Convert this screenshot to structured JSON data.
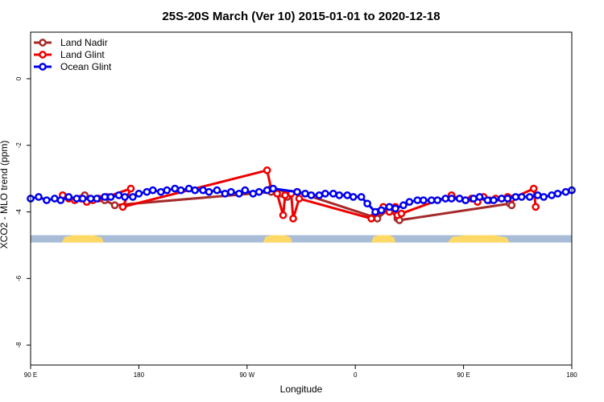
{
  "chart_data": {
    "type": "line",
    "title": "25S-20S March (Ver 10)   2015-01-01 to 2020-12-18",
    "xlabel": "Longitude",
    "ylabel": "XCO2 - MLO trend (ppm)",
    "xlim": [
      -90,
      180
    ],
    "ylim": [
      -8.6,
      1.4
    ],
    "x_ticks": [
      {
        "value": -90,
        "label": "90 E"
      },
      {
        "value": -36,
        "label": "180"
      },
      {
        "value": 18,
        "label": "90 W"
      },
      {
        "value": 72,
        "label": "0"
      },
      {
        "value": 126,
        "label": "90 E"
      },
      {
        "value": 180,
        "label": "180"
      }
    ],
    "y_ticks": [
      {
        "value": 0,
        "label": "0"
      },
      {
        "value": -2,
        "label": "-2"
      },
      {
        "value": -4,
        "label": "-4"
      },
      {
        "value": -6,
        "label": "-6"
      },
      {
        "value": -8,
        "label": "-8"
      }
    ],
    "grid": false,
    "legend_position": "top-left",
    "land_band": {
      "y_range": [
        -4.92,
        -4.7
      ],
      "ocean_color": "#a8bcd8",
      "land_color": "#ffd966",
      "land_segments": [
        [
          -74.5,
          -53.5
        ],
        [
          26,
          40.5
        ],
        [
          80,
          92
        ],
        [
          118,
          149
        ]
      ]
    },
    "series": [
      {
        "name": "Land Nadir",
        "color": "#a52a2a",
        "x": [
          -63,
          -53,
          -48,
          30,
          35,
          37,
          38,
          43,
          81,
          83,
          89,
          93,
          94,
          149,
          150
        ],
        "y": [
          -3.5,
          -3.65,
          -3.8,
          -3.4,
          -3.45,
          -3.5,
          -3.55,
          -3.4,
          -4.15,
          -4.2,
          -3.9,
          -4.2,
          -4.25,
          -3.75,
          -3.8
        ]
      },
      {
        "name": "Land Glint",
        "color": "#ee0000",
        "x": [
          -74,
          -71,
          -68,
          -65,
          -62,
          -59,
          -56,
          -52,
          -40,
          -44,
          28,
          30,
          33,
          36,
          37,
          40,
          41,
          44,
          80,
          83,
          86,
          89,
          92,
          93,
          95,
          120,
          124,
          127,
          130,
          133,
          136,
          139,
          142,
          145,
          148,
          150,
          161,
          162
        ],
        "y": [
          -3.5,
          -3.6,
          -3.65,
          -3.6,
          -3.7,
          -3.65,
          -3.6,
          -3.55,
          -3.3,
          -3.85,
          -2.75,
          -3.3,
          -3.45,
          -4.1,
          -3.5,
          -3.45,
          -4.2,
          -3.6,
          -4.2,
          -4.0,
          -3.85,
          -4.0,
          -3.85,
          -4.1,
          -4.05,
          -3.5,
          -3.6,
          -3.65,
          -3.6,
          -3.7,
          -3.55,
          -3.65,
          -3.6,
          -3.6,
          -3.55,
          -3.6,
          -3.3,
          -3.85
        ]
      },
      {
        "name": "Ocean Glint",
        "color": "#0000ee",
        "x": [
          -90,
          -86,
          -82,
          -78,
          -75,
          -71,
          -67,
          -64,
          -60,
          -57,
          -53,
          -50,
          -46,
          -43,
          -39,
          -36,
          -32,
          -29,
          -25,
          -22,
          -18,
          -15,
          -11,
          -8,
          -4,
          -1,
          3,
          7,
          10,
          14,
          17,
          21,
          24,
          28,
          31,
          43,
          47,
          50,
          54,
          57,
          61,
          64,
          68,
          71,
          75,
          78,
          82,
          85,
          89,
          92,
          96,
          99,
          103,
          106,
          110,
          113,
          117,
          120,
          124,
          127,
          131,
          134,
          138,
          141,
          145,
          148,
          152,
          155,
          159,
          163,
          166,
          170,
          173,
          177,
          180
        ],
        "y": [
          -3.6,
          -3.55,
          -3.65,
          -3.6,
          -3.65,
          -3.55,
          -3.6,
          -3.6,
          -3.6,
          -3.6,
          -3.55,
          -3.55,
          -3.5,
          -3.55,
          -3.55,
          -3.45,
          -3.4,
          -3.35,
          -3.4,
          -3.35,
          -3.3,
          -3.35,
          -3.3,
          -3.35,
          -3.35,
          -3.4,
          -3.35,
          -3.45,
          -3.4,
          -3.45,
          -3.35,
          -3.45,
          -3.4,
          -3.35,
          -3.3,
          -3.4,
          -3.45,
          -3.5,
          -3.5,
          -3.45,
          -3.45,
          -3.5,
          -3.5,
          -3.55,
          -3.55,
          -3.75,
          -4.0,
          -3.95,
          -3.85,
          -3.9,
          -3.8,
          -3.7,
          -3.65,
          -3.65,
          -3.65,
          -3.65,
          -3.6,
          -3.6,
          -3.6,
          -3.65,
          -3.6,
          -3.55,
          -3.65,
          -3.65,
          -3.6,
          -3.6,
          -3.55,
          -3.55,
          -3.55,
          -3.5,
          -3.55,
          -3.5,
          -3.45,
          -3.4,
          -3.35
        ]
      }
    ]
  }
}
